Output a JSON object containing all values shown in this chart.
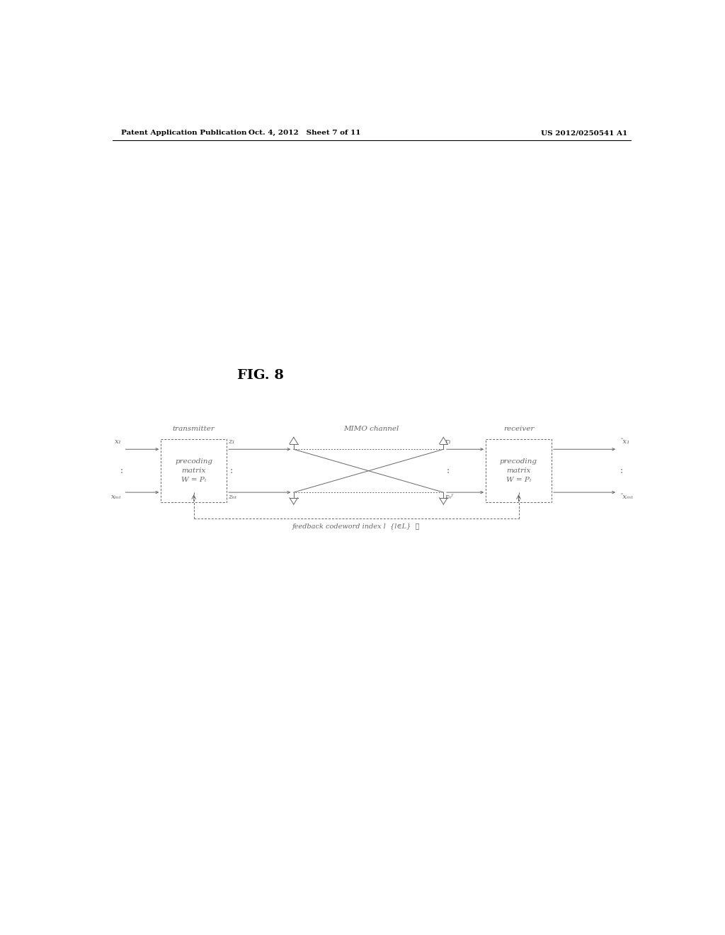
{
  "fig_label": "FIG. 8",
  "header_left": "Patent Application Publication",
  "header_mid": "Oct. 4, 2012   Sheet 7 of 11",
  "header_right": "US 2012/0250541 A1",
  "background_color": "#ffffff",
  "text_color": "#000000",
  "diagram_color": "#666666",
  "label_transmitter": "transmitter",
  "label_mimo": "MIMO channel",
  "label_receiver": "receiver",
  "feedback_text": "feedback codeword index l  {l∈L}  ⋯"
}
